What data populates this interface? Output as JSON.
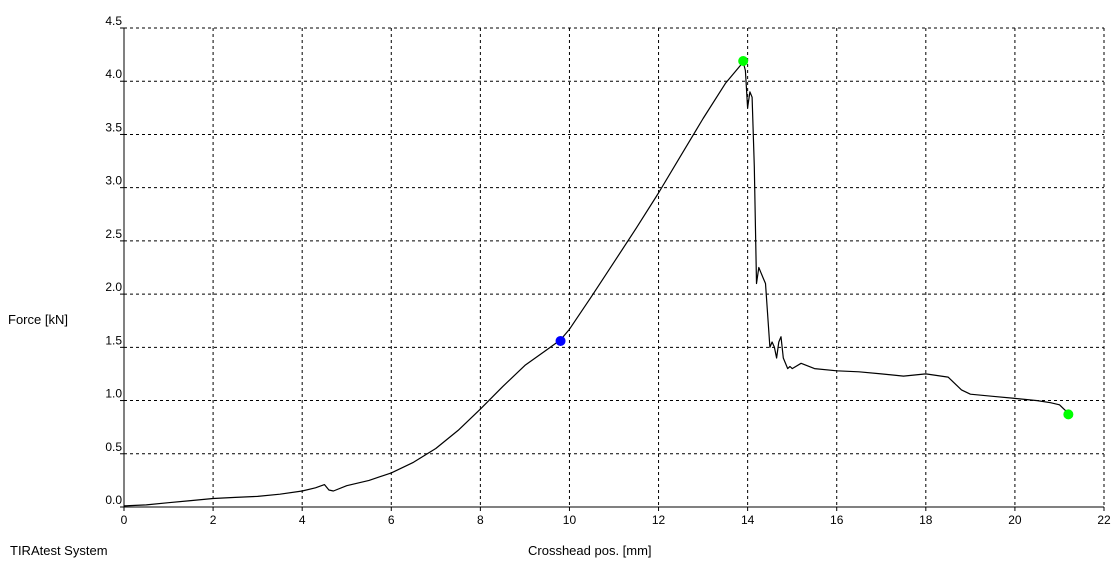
{
  "footer": "TIRAtest System",
  "chart_data": {
    "type": "line",
    "xlabel": "Crosshead pos. [mm]",
    "ylabel": "Force [kN]",
    "xlim": [
      0,
      22
    ],
    "ylim": [
      0,
      4.5
    ],
    "x_ticks": [
      "0",
      "2",
      "4",
      "6",
      "8",
      "10",
      "12",
      "14",
      "16",
      "18",
      "20",
      "22"
    ],
    "y_ticks": [
      "0.0",
      "0.5",
      "1.0",
      "1.5",
      "2.0",
      "2.5",
      "3.0",
      "3.5",
      "4.0",
      "4.5"
    ],
    "grid": true,
    "grid_style": "dashed",
    "line_color": "#000000",
    "series": [
      {
        "x": [
          0,
          0.5,
          1,
          1.5,
          2,
          2.5,
          3,
          3.5,
          4,
          4.3,
          4.5,
          4.6,
          4.7,
          5,
          5.5,
          6,
          6.5,
          7,
          7.5,
          8,
          8.5,
          9,
          9.5,
          9.8,
          10,
          10.5,
          11,
          11.5,
          12,
          12.5,
          13,
          13.5,
          13.9,
          13.95,
          14.0,
          14.05,
          14.1,
          14.15,
          14.2,
          14.25,
          14.3,
          14.35,
          14.4,
          14.5,
          14.55,
          14.6,
          14.65,
          14.7,
          14.75,
          14.8,
          14.9,
          14.95,
          15.0,
          15.2,
          15.5,
          16,
          16.5,
          17,
          17.5,
          18,
          18.5,
          18.8,
          19.0,
          19.5,
          20,
          20.5,
          20.8,
          21.0,
          21.1,
          21.2
        ],
        "y": [
          0.01,
          0.02,
          0.04,
          0.06,
          0.08,
          0.09,
          0.1,
          0.12,
          0.15,
          0.18,
          0.21,
          0.16,
          0.15,
          0.2,
          0.25,
          0.32,
          0.42,
          0.55,
          0.72,
          0.92,
          1.13,
          1.33,
          1.48,
          1.57,
          1.67,
          1.98,
          2.3,
          2.62,
          2.95,
          3.3,
          3.65,
          3.98,
          4.18,
          4.1,
          3.75,
          3.9,
          3.85,
          3.2,
          2.1,
          2.25,
          2.2,
          2.15,
          2.1,
          1.5,
          1.55,
          1.5,
          1.4,
          1.55,
          1.6,
          1.4,
          1.3,
          1.32,
          1.3,
          1.35,
          1.3,
          1.28,
          1.27,
          1.25,
          1.23,
          1.25,
          1.22,
          1.1,
          1.06,
          1.04,
          1.02,
          1.0,
          0.98,
          0.96,
          0.92,
          0.88
        ]
      }
    ],
    "markers": [
      {
        "x": 9.8,
        "y": 1.56,
        "color": "#0000ff"
      },
      {
        "x": 13.9,
        "y": 4.19,
        "color": "#00ff00"
      },
      {
        "x": 21.2,
        "y": 0.87,
        "color": "#00ff00"
      }
    ]
  }
}
